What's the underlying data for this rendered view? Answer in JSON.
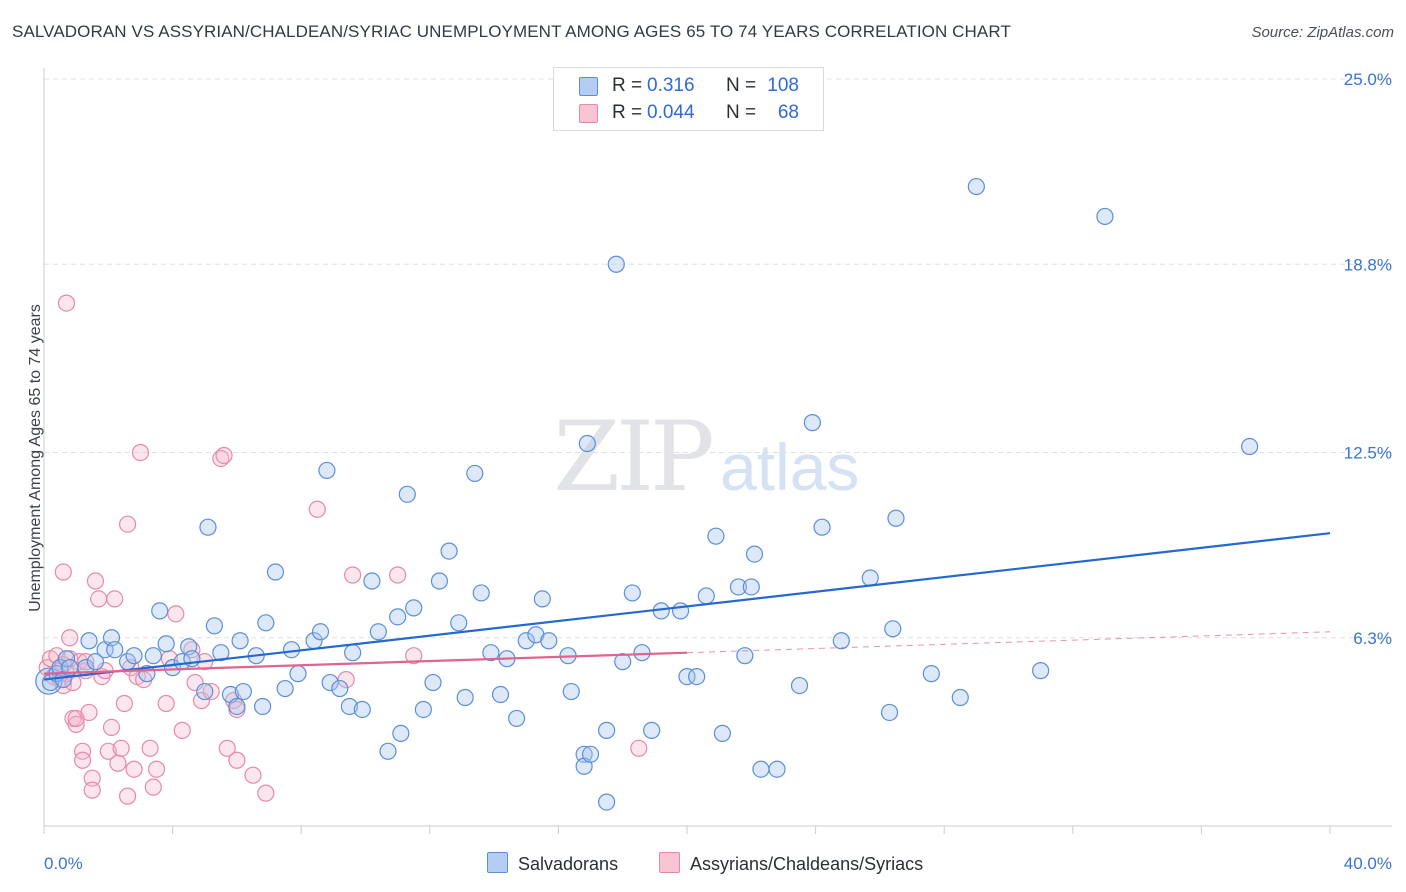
{
  "title": "SALVADORAN VS ASSYRIAN/CHALDEAN/SYRIAC UNEMPLOYMENT AMONG AGES 65 TO 74 YEARS CORRELATION CHART",
  "source": "Source: ZipAtlas.com",
  "watermark": {
    "zip": "ZIP",
    "atlas": "atlas"
  },
  "colors": {
    "blue_fill": "#a9c6ef",
    "blue_stroke": "#5b8fd8",
    "blue_line": "#2469d0",
    "pink_fill": "#f6b8cc",
    "pink_stroke": "#e58aa8",
    "pink_line": "#e0648f",
    "tick_text": "#3a74cf",
    "grid": "#dde1e6"
  },
  "legend": {
    "rows": [
      {
        "r_label": "R =",
        "r_value": "0.316",
        "n_label": "N =",
        "n_value": "108"
      },
      {
        "r_label": "R =",
        "r_value": "0.044",
        "n_label": "N =",
        "n_value": "68"
      }
    ]
  },
  "bottom_legend": {
    "blue": "Salvadorans",
    "pink": "Assyrians/Chaldeans/Syriacs"
  },
  "chart_data": {
    "type": "scatter",
    "title": "SALVADORAN VS ASSYRIAN/CHALDEAN/SYRIAC UNEMPLOYMENT AMONG AGES 65 TO 74 YEARS CORRELATION CHART",
    "xlabel": "",
    "ylabel": "Unemployment Among Ages 65 to 74 years",
    "xlim": [
      0,
      40
    ],
    "ylim": [
      0,
      25
    ],
    "x_tick_labels": [
      "0.0%",
      "40.0%"
    ],
    "y_ticks": [
      6.3,
      12.5,
      18.8,
      25.0
    ],
    "y_tick_labels": [
      "6.3%",
      "12.5%",
      "18.8%",
      "25.0%"
    ],
    "grid": true,
    "legend_position": "top-center",
    "series": [
      {
        "name": "Salvadorans",
        "color": "#a9c6ef",
        "r": 0.316,
        "n": 108,
        "trend": {
          "x": [
            0,
            40
          ],
          "y": [
            4.9,
            9.8
          ]
        },
        "points": [
          [
            0.2,
            4.8
          ],
          [
            0.4,
            5.1
          ],
          [
            0.5,
            5.3
          ],
          [
            0.6,
            4.9
          ],
          [
            0.7,
            5.6
          ],
          [
            0.8,
            5.3
          ],
          [
            1.3,
            5.3
          ],
          [
            1.4,
            6.2
          ],
          [
            1.6,
            5.5
          ],
          [
            1.9,
            5.9
          ],
          [
            2.1,
            6.3
          ],
          [
            2.2,
            5.9
          ],
          [
            2.6,
            5.5
          ],
          [
            2.8,
            5.7
          ],
          [
            3.2,
            5.1
          ],
          [
            3.4,
            5.7
          ],
          [
            3.6,
            7.2
          ],
          [
            3.8,
            6.1
          ],
          [
            4.0,
            5.3
          ],
          [
            4.3,
            5.5
          ],
          [
            4.5,
            6.0
          ],
          [
            4.6,
            5.6
          ],
          [
            5.0,
            4.5
          ],
          [
            5.1,
            10.0
          ],
          [
            5.3,
            6.7
          ],
          [
            5.5,
            5.8
          ],
          [
            5.8,
            4.4
          ],
          [
            6.0,
            4.0
          ],
          [
            6.1,
            6.2
          ],
          [
            6.2,
            4.5
          ],
          [
            6.6,
            5.7
          ],
          [
            6.8,
            4.0
          ],
          [
            6.9,
            6.8
          ],
          [
            7.2,
            8.5
          ],
          [
            7.5,
            4.6
          ],
          [
            7.7,
            5.9
          ],
          [
            7.9,
            5.1
          ],
          [
            8.4,
            6.2
          ],
          [
            8.6,
            6.5
          ],
          [
            8.8,
            11.9
          ],
          [
            8.9,
            4.8
          ],
          [
            9.2,
            4.6
          ],
          [
            9.5,
            4.0
          ],
          [
            9.6,
            5.8
          ],
          [
            9.9,
            3.9
          ],
          [
            10.2,
            8.2
          ],
          [
            10.4,
            6.5
          ],
          [
            10.7,
            2.5
          ],
          [
            11.0,
            7.0
          ],
          [
            11.1,
            3.1
          ],
          [
            11.3,
            11.1
          ],
          [
            11.5,
            7.3
          ],
          [
            11.8,
            3.9
          ],
          [
            12.1,
            4.8
          ],
          [
            12.3,
            8.2
          ],
          [
            12.6,
            9.2
          ],
          [
            12.9,
            6.8
          ],
          [
            13.1,
            4.3
          ],
          [
            13.4,
            11.8
          ],
          [
            13.6,
            7.8
          ],
          [
            13.9,
            5.8
          ],
          [
            14.2,
            4.4
          ],
          [
            14.4,
            5.6
          ],
          [
            14.7,
            3.6
          ],
          [
            15.0,
            6.2
          ],
          [
            15.3,
            6.4
          ],
          [
            15.5,
            7.6
          ],
          [
            15.7,
            6.2
          ],
          [
            16.3,
            5.7
          ],
          [
            16.4,
            4.5
          ],
          [
            16.8,
            2.4
          ],
          [
            16.8,
            2.0
          ],
          [
            16.9,
            12.8
          ],
          [
            17.0,
            2.4
          ],
          [
            17.5,
            3.2
          ],
          [
            17.5,
            0.8
          ],
          [
            17.8,
            18.8
          ],
          [
            18.0,
            5.5
          ],
          [
            18.3,
            7.8
          ],
          [
            18.6,
            5.8
          ],
          [
            18.9,
            3.2
          ],
          [
            19.2,
            7.2
          ],
          [
            19.8,
            7.2
          ],
          [
            20.0,
            5.0
          ],
          [
            20.3,
            5.0
          ],
          [
            20.6,
            7.7
          ],
          [
            20.9,
            9.7
          ],
          [
            21.1,
            3.1
          ],
          [
            21.6,
            8.0
          ],
          [
            21.8,
            5.7
          ],
          [
            22.0,
            8.0
          ],
          [
            22.1,
            9.1
          ],
          [
            22.3,
            1.9
          ],
          [
            22.8,
            1.9
          ],
          [
            23.5,
            4.7
          ],
          [
            23.9,
            13.5
          ],
          [
            24.2,
            10.0
          ],
          [
            24.8,
            6.2
          ],
          [
            25.7,
            8.3
          ],
          [
            26.3,
            3.8
          ],
          [
            26.5,
            10.3
          ],
          [
            26.4,
            6.6
          ],
          [
            27.6,
            5.1
          ],
          [
            28.5,
            4.3
          ],
          [
            29.0,
            21.4
          ],
          [
            31.0,
            5.2
          ],
          [
            33.0,
            20.4
          ],
          [
            37.5,
            12.7
          ]
        ]
      },
      {
        "name": "Assyrians/Chaldeans/Syriacs",
        "color": "#f6b8cc",
        "r": 0.044,
        "n": 68,
        "trend": {
          "x": [
            0,
            20
          ],
          "y": [
            5.1,
            5.8
          ]
        },
        "points": [
          [
            0.1,
            5.3
          ],
          [
            0.2,
            5.6
          ],
          [
            0.3,
            5.0
          ],
          [
            0.4,
            5.7
          ],
          [
            0.5,
            5.2
          ],
          [
            0.5,
            4.9
          ],
          [
            0.6,
            5.4
          ],
          [
            0.6,
            4.7
          ],
          [
            0.7,
            5.1
          ],
          [
            0.8,
            5.6
          ],
          [
            0.9,
            4.8
          ],
          [
            0.6,
            8.5
          ],
          [
            0.7,
            17.5
          ],
          [
            0.8,
            6.3
          ],
          [
            0.9,
            3.6
          ],
          [
            1.0,
            3.4
          ],
          [
            1.0,
            3.6
          ],
          [
            1.1,
            5.5
          ],
          [
            1.2,
            2.5
          ],
          [
            1.2,
            2.2
          ],
          [
            1.3,
            5.2
          ],
          [
            1.3,
            5.5
          ],
          [
            1.4,
            3.8
          ],
          [
            1.5,
            1.6
          ],
          [
            1.5,
            1.2
          ],
          [
            1.6,
            8.2
          ],
          [
            1.7,
            7.6
          ],
          [
            1.8,
            5.0
          ],
          [
            1.9,
            5.2
          ],
          [
            2.0,
            2.5
          ],
          [
            2.1,
            3.3
          ],
          [
            2.2,
            7.6
          ],
          [
            2.3,
            2.1
          ],
          [
            2.4,
            2.6
          ],
          [
            2.5,
            4.1
          ],
          [
            2.6,
            1.0
          ],
          [
            2.6,
            10.1
          ],
          [
            2.7,
            5.3
          ],
          [
            2.8,
            1.9
          ],
          [
            2.9,
            5.0
          ],
          [
            3.0,
            12.5
          ],
          [
            3.1,
            4.9
          ],
          [
            3.3,
            2.6
          ],
          [
            3.4,
            1.3
          ],
          [
            3.5,
            1.9
          ],
          [
            3.8,
            4.1
          ],
          [
            3.9,
            5.6
          ],
          [
            4.1,
            7.1
          ],
          [
            4.3,
            3.2
          ],
          [
            4.6,
            5.9
          ],
          [
            4.7,
            4.8
          ],
          [
            4.9,
            4.2
          ],
          [
            5.0,
            5.5
          ],
          [
            5.2,
            4.5
          ],
          [
            5.5,
            12.3
          ],
          [
            5.6,
            12.4
          ],
          [
            5.7,
            2.6
          ],
          [
            5.9,
            4.2
          ],
          [
            6.0,
            3.9
          ],
          [
            6.0,
            2.2
          ],
          [
            6.5,
            1.7
          ],
          [
            6.9,
            1.1
          ],
          [
            8.5,
            10.6
          ],
          [
            9.4,
            4.9
          ],
          [
            9.6,
            8.4
          ],
          [
            11.0,
            8.4
          ],
          [
            11.5,
            5.7
          ],
          [
            18.5,
            2.6
          ]
        ]
      }
    ]
  }
}
